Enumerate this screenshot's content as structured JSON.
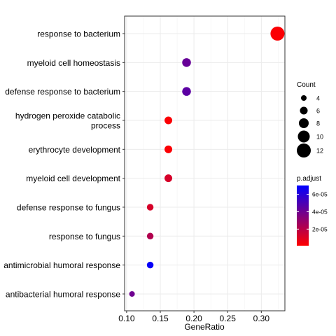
{
  "chart_data": {
    "type": "scatter",
    "xlabel": "GeneRatio",
    "xlim": [
      0.097,
      0.335
    ],
    "xticks": [
      0.1,
      0.15,
      0.2,
      0.25,
      0.3
    ],
    "xtick_labels": [
      "0.10",
      "0.15",
      "0.20",
      "0.25",
      "0.30"
    ],
    "grid": true,
    "categories": [
      "response to bacterium",
      "myeloid cell homeostasis",
      "defense response to bacterium",
      "hydrogen peroxide catabolic process",
      "erythrocyte development",
      "myeloid cell development",
      "defense response to fungus",
      "response to fungus",
      "antimicrobial humoral response",
      "antibacterial humoral response"
    ],
    "category_labels": [
      [
        "response to bacterium"
      ],
      [
        "myeloid cell homeostasis"
      ],
      [
        "defense response to bacterium"
      ],
      [
        "hydrogen peroxide catabolic",
        "process"
      ],
      [
        "erythrocyte development"
      ],
      [
        "myeloid cell development"
      ],
      [
        "defense response to fungus"
      ],
      [
        "response to fungus"
      ],
      [
        "antimicrobial humoral response"
      ],
      [
        "antibacterial humoral response"
      ]
    ],
    "points": [
      {
        "term": "response to bacterium",
        "gene_ratio": 0.324,
        "count": 12,
        "p_adjust": 2e-06
      },
      {
        "term": "myeloid cell homeostasis",
        "gene_ratio": 0.189,
        "count": 7,
        "p_adjust": 4.2e-05
      },
      {
        "term": "defense response to bacterium",
        "gene_ratio": 0.189,
        "count": 7,
        "p_adjust": 4.5e-05
      },
      {
        "term": "hydrogen peroxide catabolic process",
        "gene_ratio": 0.162,
        "count": 6,
        "p_adjust": 2e-06
      },
      {
        "term": "erythrocyte development",
        "gene_ratio": 0.162,
        "count": 6,
        "p_adjust": 2e-06
      },
      {
        "term": "myeloid cell development",
        "gene_ratio": 0.162,
        "count": 6,
        "p_adjust": 1.2e-05
      },
      {
        "term": "defense response to fungus",
        "gene_ratio": 0.135,
        "count": 5,
        "p_adjust": 1.2e-05
      },
      {
        "term": "response to fungus",
        "gene_ratio": 0.135,
        "count": 5,
        "p_adjust": 2.2e-05
      },
      {
        "term": "antimicrobial humoral response",
        "gene_ratio": 0.135,
        "count": 5,
        "p_adjust": 6.8e-05
      },
      {
        "term": "antibacterial humoral response",
        "gene_ratio": 0.108,
        "count": 4,
        "p_adjust": 4e-05
      }
    ],
    "legend_count": {
      "title": "Count",
      "values": [
        4,
        6,
        8,
        10,
        12
      ],
      "labels": [
        "4",
        "6",
        "8",
        "10",
        "12"
      ]
    },
    "legend_color": {
      "title": "p.adjust",
      "range": [
        1e-06,
        7e-05
      ],
      "tick_values": [
        2e-05,
        4e-05,
        6e-05
      ],
      "tick_labels": [
        "2e-05",
        "4e-05",
        "6e-05"
      ],
      "low_color": "#FF0000",
      "high_color": "#0000FF"
    },
    "legend_position": "right"
  }
}
